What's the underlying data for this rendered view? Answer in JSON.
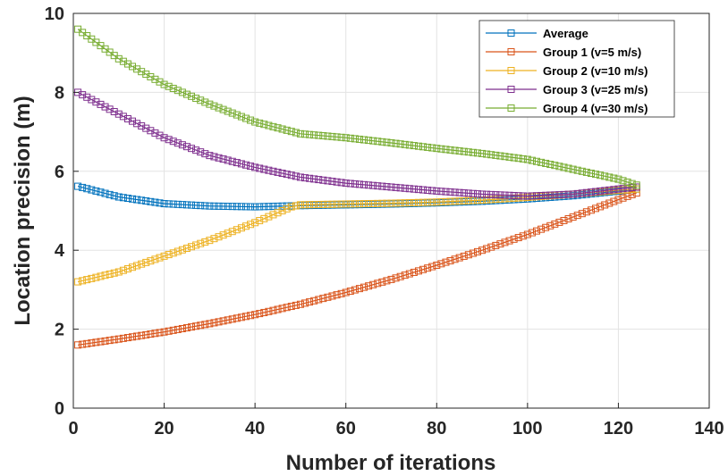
{
  "chart_data": {
    "type": "line",
    "title": "",
    "xlabel": "Number of iterations",
    "ylabel": "Location precision (m)",
    "xlim": [
      0,
      140
    ],
    "ylim": [
      0,
      10
    ],
    "xticks": [
      0,
      20,
      40,
      60,
      80,
      100,
      120,
      140
    ],
    "yticks": [
      0,
      2,
      4,
      6,
      8,
      10
    ],
    "grid": true,
    "legend_position": "top-right",
    "marker": "square",
    "series": [
      {
        "name": "Average",
        "color": "#0072BD",
        "x": [
          1,
          10,
          20,
          30,
          40,
          50,
          60,
          70,
          80,
          90,
          100,
          110,
          120,
          124
        ],
        "y": [
          5.62,
          5.35,
          5.18,
          5.12,
          5.1,
          5.13,
          5.15,
          5.17,
          5.2,
          5.24,
          5.3,
          5.38,
          5.5,
          5.55
        ]
      },
      {
        "name": "Group 1 (v=5 m/s)",
        "color": "#D95319",
        "x": [
          1,
          10,
          20,
          30,
          40,
          50,
          60,
          70,
          80,
          90,
          100,
          110,
          120,
          124
        ],
        "y": [
          1.6,
          1.75,
          1.93,
          2.14,
          2.37,
          2.63,
          2.93,
          3.26,
          3.62,
          4.0,
          4.4,
          4.84,
          5.28,
          5.45
        ]
      },
      {
        "name": "Group 2 (v=10 m/s)",
        "color": "#EDB120",
        "x": [
          1,
          10,
          20,
          30,
          40,
          48,
          50,
          60,
          70,
          80,
          90,
          100,
          110,
          120,
          124
        ],
        "y": [
          3.2,
          3.45,
          3.85,
          4.25,
          4.7,
          5.1,
          5.15,
          5.17,
          5.19,
          5.22,
          5.27,
          5.34,
          5.42,
          5.52,
          5.55
        ]
      },
      {
        "name": "Group 3 (v=25 m/s)",
        "color": "#7E2F8E",
        "x": [
          1,
          10,
          20,
          30,
          40,
          50,
          60,
          70,
          80,
          90,
          100,
          110,
          120,
          124
        ],
        "y": [
          8.0,
          7.45,
          6.85,
          6.4,
          6.1,
          5.85,
          5.7,
          5.6,
          5.5,
          5.42,
          5.37,
          5.42,
          5.55,
          5.6
        ]
      },
      {
        "name": "Group 4 (v=30 m/s)",
        "color": "#77AC30",
        "x": [
          1,
          10,
          20,
          30,
          40,
          50,
          60,
          70,
          80,
          90,
          100,
          110,
          120,
          124
        ],
        "y": [
          9.6,
          8.85,
          8.2,
          7.7,
          7.25,
          6.95,
          6.85,
          6.72,
          6.58,
          6.45,
          6.3,
          6.05,
          5.8,
          5.65
        ]
      }
    ]
  }
}
